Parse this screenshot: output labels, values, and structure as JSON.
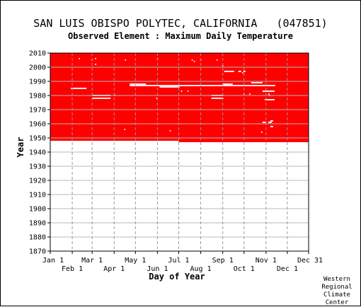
{
  "chart_data": {
    "type": "heatmap",
    "title": "SAN LUIS OBISPO POLYTEC, CALIFORNIA   (047851)",
    "subtitle": "Observed Element : Maximum Daily Temperature",
    "xlabel": "Day of Year",
    "ylabel": "Year",
    "xlim": [
      1,
      365
    ],
    "ylim": [
      1870,
      2010
    ],
    "x_tick_labels_upper": [
      {
        "label": "Jan 1",
        "day": 1
      },
      {
        "label": "Mar 1",
        "day": 60
      },
      {
        "label": "May 1",
        "day": 121
      },
      {
        "label": "Jul 1",
        "day": 182
      },
      {
        "label": "Sep 1",
        "day": 244
      },
      {
        "label": "Nov 1",
        "day": 305
      },
      {
        "label": "Dec 31",
        "day": 365
      }
    ],
    "x_tick_labels_lower": [
      {
        "label": "Feb 1",
        "day": 32
      },
      {
        "label": "Apr 1",
        "day": 91
      },
      {
        "label": "Jun 1",
        "day": 152
      },
      {
        "label": "Aug 1",
        "day": 213
      },
      {
        "label": "Oct 1",
        "day": 274
      },
      {
        "label": "Dec 1",
        "day": 335
      }
    ],
    "y_ticks": [
      1870,
      1880,
      1890,
      1900,
      1910,
      1920,
      1930,
      1940,
      1950,
      1960,
      1970,
      1980,
      1990,
      2000,
      2010
    ],
    "grid": true,
    "data_color": "#ff0000",
    "gap_color": "#ffffff",
    "observed_region": {
      "year_end": 2010,
      "start_by_day": [
        {
          "day_from": 1,
          "day_to": 182,
          "year_start": 1948
        },
        {
          "day_from": 182,
          "day_to": 365,
          "year_start": 1947
        }
      ]
    },
    "missing_segments": [
      {
        "year": 1985,
        "day_start": 30,
        "day_end": 52
      },
      {
        "year": 1980,
        "day_start": 60,
        "day_end": 86
      },
      {
        "year": 1978,
        "day_start": 60,
        "day_end": 86
      },
      {
        "year": 1988,
        "day_start": 113,
        "day_end": 136
      },
      {
        "year": 1987,
        "day_start": 113,
        "day_end": 318
      },
      {
        "year": 1986,
        "day_start": 155,
        "day_end": 183
      },
      {
        "year": 1980,
        "day_start": 228,
        "day_end": 245
      },
      {
        "year": 1978,
        "day_start": 228,
        "day_end": 245
      },
      {
        "year": 1997,
        "day_start": 246,
        "day_end": 260
      },
      {
        "year": 1988,
        "day_start": 244,
        "day_end": 258
      },
      {
        "year": 1989,
        "day_start": 284,
        "day_end": 300
      },
      {
        "year": 1997,
        "day_start": 266,
        "day_end": 270
      },
      {
        "year": 1997,
        "day_start": 273,
        "day_end": 276
      },
      {
        "year": 1983,
        "day_start": 300,
        "day_end": 317
      },
      {
        "year": 1977,
        "day_start": 303,
        "day_end": 317
      },
      {
        "year": 1961,
        "day_start": 300,
        "day_end": 305
      },
      {
        "year": 1961,
        "day_start": 308,
        "day_end": 313
      },
      {
        "year": 1962,
        "day_start": 311,
        "day_end": 315
      },
      {
        "year": 1958,
        "day_start": 311,
        "day_end": 315
      }
    ],
    "missing_points": [
      {
        "year": 2006,
        "day": 42
      },
      {
        "year": 2005,
        "day": 60
      },
      {
        "year": 2006,
        "day": 65
      },
      {
        "year": 2002,
        "day": 65
      },
      {
        "year": 2005,
        "day": 107
      },
      {
        "year": 1980,
        "day": 92
      },
      {
        "year": 1956,
        "day": 106
      },
      {
        "year": 1978,
        "day": 151
      },
      {
        "year": 2006,
        "day": 152
      },
      {
        "year": 1955,
        "day": 170
      },
      {
        "year": 1983,
        "day": 186
      },
      {
        "year": 2005,
        "day": 201
      },
      {
        "year": 2004,
        "day": 204
      },
      {
        "year": 2005,
        "day": 213
      },
      {
        "year": 2005,
        "day": 236
      },
      {
        "year": 1983,
        "day": 195
      },
      {
        "year": 1981,
        "day": 274
      },
      {
        "year": 1981,
        "day": 282
      },
      {
        "year": 1996,
        "day": 272
      },
      {
        "year": 2001,
        "day": 244
      },
      {
        "year": 1980,
        "day": 310
      },
      {
        "year": 1981,
        "day": 309
      },
      {
        "year": 1954,
        "day": 299
      }
    ]
  },
  "credit": [
    "Western",
    "Regional",
    "Climate",
    "Center"
  ]
}
